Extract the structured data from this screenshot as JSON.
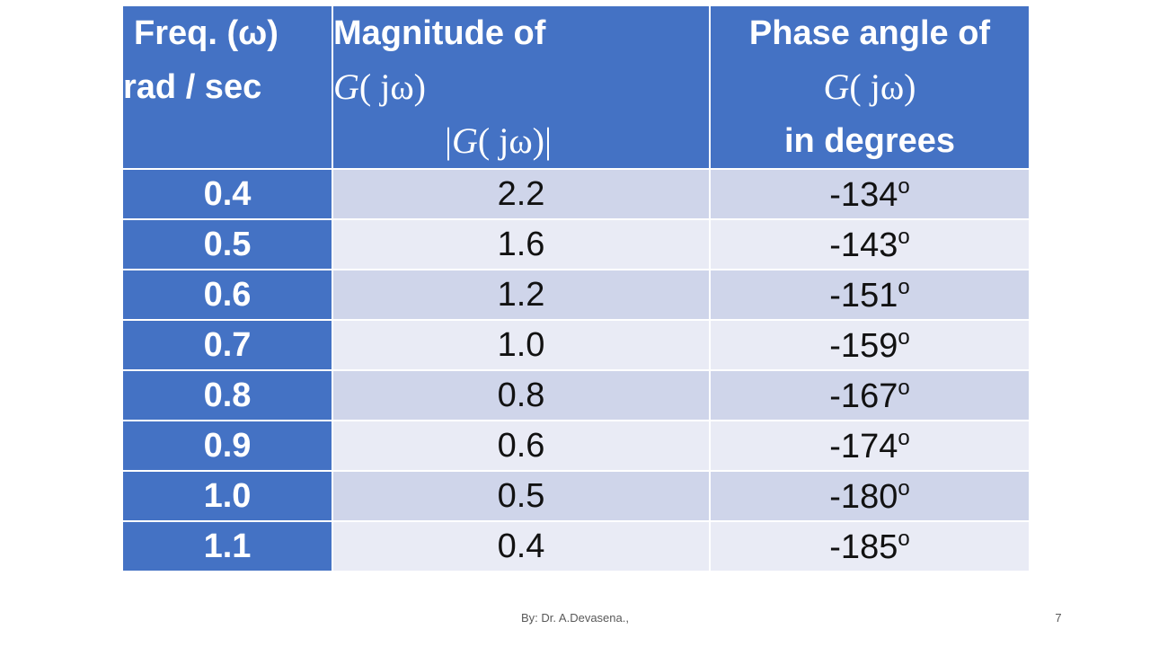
{
  "table": {
    "header": {
      "freq_line1": "Freq. (ω)",
      "freq_line2": "rad / sec",
      "mag_line1": "Magnitude of",
      "mag_func": "G",
      "mag_arg": "( jω)",
      "mag_abs_func": "G",
      "mag_abs_arg": "( jω)",
      "phase_line1": "Phase angle of",
      "phase_func": "G",
      "phase_arg": "( jω)",
      "phase_line3": "in degrees"
    },
    "rows": [
      {
        "freq": "0.4",
        "magnitude": "2.2",
        "phase": "-134"
      },
      {
        "freq": "0.5",
        "magnitude": "1.6",
        "phase": "-143"
      },
      {
        "freq": "0.6",
        "magnitude": "1.2",
        "phase": "-151"
      },
      {
        "freq": "0.7",
        "magnitude": "1.0",
        "phase": "-159"
      },
      {
        "freq": "0.8",
        "magnitude": "0.8",
        "phase": "-167"
      },
      {
        "freq": "0.9",
        "magnitude": "0.6",
        "phase": "-174"
      },
      {
        "freq": "1.0",
        "magnitude": "0.5",
        "phase": "-180"
      },
      {
        "freq": "1.1",
        "magnitude": "0.4",
        "phase": "-185"
      }
    ],
    "degree_symbol": "o"
  },
  "footer": {
    "author": "By: Dr. A.Devasena.,",
    "slide_number": "7"
  },
  "colors": {
    "header_blue": "#4472c4",
    "row_band_dark": "#cfd5ea",
    "row_band_light": "#e9ebf5"
  }
}
